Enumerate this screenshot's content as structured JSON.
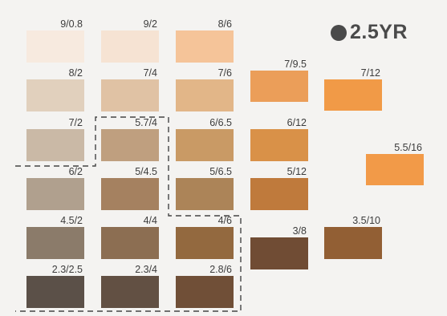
{
  "hue": "2.5YR",
  "swatches": [
    {
      "label": "9/0.8",
      "color": "#f7eadf"
    },
    {
      "label": "9/2",
      "color": "#f6e3d3"
    },
    {
      "label": "8/6",
      "color": "#f5c499"
    },
    {
      "label": "8/2",
      "color": "#e1d0bd"
    },
    {
      "label": "7/4",
      "color": "#e0c2a4"
    },
    {
      "label": "7/6",
      "color": "#e2b688"
    },
    {
      "label": "7/9.5",
      "color": "#eb9e59"
    },
    {
      "label": "7/12",
      "color": "#f19a47"
    },
    {
      "label": "7/2",
      "color": "#cab9a6"
    },
    {
      "label": "5.7/4",
      "color": "#bf9f7f"
    },
    {
      "label": "6/6.5",
      "color": "#c99a65"
    },
    {
      "label": "6/12",
      "color": "#d99148"
    },
    {
      "label": "5.5/16",
      "color": "#f29a48"
    },
    {
      "label": "6/2",
      "color": "#b0a08e"
    },
    {
      "label": "5/4.5",
      "color": "#a58160"
    },
    {
      "label": "5/6.5",
      "color": "#ac8458"
    },
    {
      "label": "5/12",
      "color": "#bf7a3c"
    },
    {
      "label": "4.5/2",
      "color": "#8b7b6a"
    },
    {
      "label": "4/4",
      "color": "#8c6e52"
    },
    {
      "label": "4/6",
      "color": "#93693f"
    },
    {
      "label": "3/8",
      "color": "#704c34"
    },
    {
      "label": "3.5/10",
      "color": "#925f34"
    },
    {
      "label": "2.3/2.5",
      "color": "#5b5048"
    },
    {
      "label": "2.3/4",
      "color": "#625043"
    },
    {
      "label": "2.8/6",
      "color": "#704f37"
    }
  ]
}
